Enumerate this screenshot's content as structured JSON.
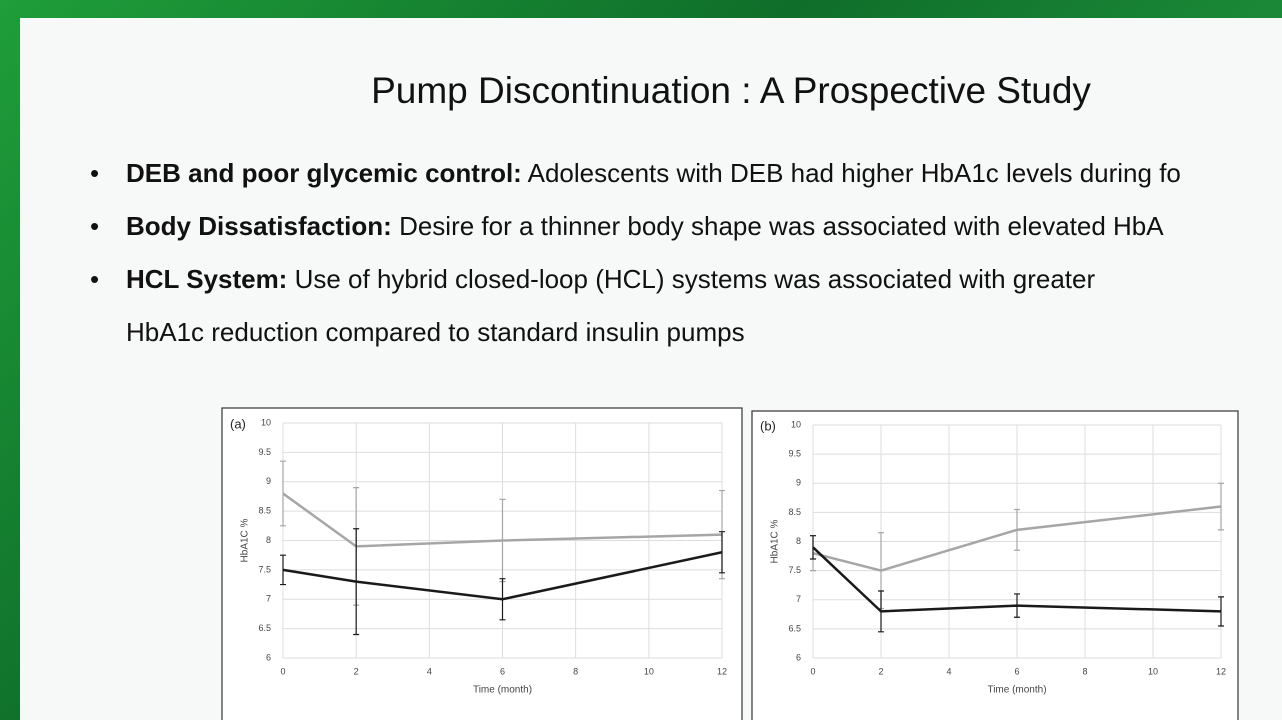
{
  "slide": {
    "title": "Pump Discontinuation : A Prospective Study",
    "bullets": [
      {
        "label": "DEB and poor glycemic control:",
        "text": "Adolescents with DEB had higher HbA1c levels during fo"
      },
      {
        "label": "Body Dissatisfaction:",
        "text": "Desire for a thinner body shape was associated with elevated HbA"
      },
      {
        "label": "HCL System:",
        "text": "Use of hybrid closed-loop (HCL) systems was associated with greater",
        "continuation": "HbA1c reduction compared to standard insulin pumps"
      }
    ]
  },
  "chart_data": [
    {
      "type": "line",
      "panel": "(a)",
      "xlabel": "Time (month)",
      "ylabel": "HbA1C %",
      "x": [
        0,
        2,
        6,
        12
      ],
      "xlim": [
        0,
        12
      ],
      "xticks": [
        0,
        2,
        4,
        6,
        8,
        10,
        12
      ],
      "ylim": [
        6,
        10
      ],
      "yticks": [
        6,
        6.5,
        7,
        7.5,
        8,
        8.5,
        9,
        9.5,
        10
      ],
      "grid": true,
      "series": [
        {
          "color": "#a6a6a6",
          "values": [
            8.8,
            7.9,
            8.0,
            8.1
          ],
          "errors": [
            0.55,
            1.0,
            0.7,
            0.75
          ]
        },
        {
          "color": "#1a1a1a",
          "values": [
            7.5,
            7.3,
            7.0,
            7.8
          ],
          "errors": [
            0.25,
            0.9,
            0.35,
            0.35
          ]
        }
      ]
    },
    {
      "type": "line",
      "panel": "(b)",
      "xlabel": "Time (month)",
      "ylabel": "HbA1C %",
      "x": [
        0,
        2,
        6,
        12
      ],
      "xlim": [
        0,
        12
      ],
      "xticks": [
        0,
        2,
        4,
        6,
        8,
        10,
        12
      ],
      "ylim": [
        6,
        10
      ],
      "yticks": [
        6,
        6.5,
        7,
        7.5,
        8,
        8.5,
        9,
        9.5,
        10
      ],
      "grid": true,
      "series": [
        {
          "color": "#a6a6a6",
          "values": [
            7.8,
            7.5,
            8.2,
            8.6
          ],
          "errors": [
            0.3,
            0.65,
            0.35,
            0.4
          ]
        },
        {
          "color": "#1a1a1a",
          "values": [
            7.9,
            6.8,
            6.9,
            6.8
          ],
          "errors": [
            0.2,
            0.35,
            0.2,
            0.25
          ]
        }
      ]
    }
  ]
}
